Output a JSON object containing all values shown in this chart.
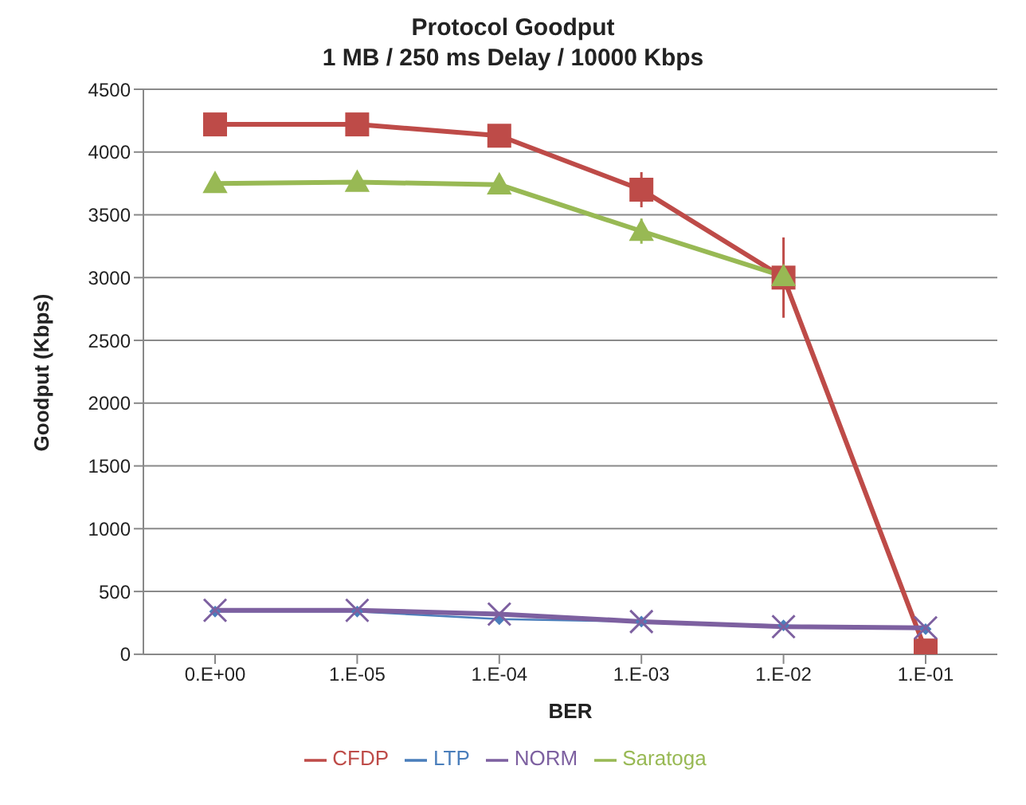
{
  "chart_data": {
    "type": "line",
    "title": "Protocol Goodput",
    "subtitle": "1 MB / 250 ms Delay / 10000 Kbps",
    "xlabel": "BER",
    "ylabel": "Goodput (Kbps)",
    "categories": [
      "0.E+00",
      "1.E-05",
      "1.E-04",
      "1.E-03",
      "1.E-02",
      "1.E-01"
    ],
    "ylim": [
      0,
      4500
    ],
    "yticks": [
      0,
      500,
      1000,
      1500,
      2000,
      2500,
      3000,
      3500,
      4000,
      4500
    ],
    "grid": "y",
    "legend": "bottom",
    "series": [
      {
        "name": "CFDP",
        "color": "#be4b48",
        "marker": "square",
        "values": [
          4220,
          4220,
          4130,
          3700,
          3000,
          30
        ],
        "errors": [
          null,
          null,
          null,
          140,
          320,
          null
        ]
      },
      {
        "name": "LTP",
        "color": "#4a7ebb",
        "marker": "diamond",
        "values": [
          340,
          340,
          280,
          260,
          230,
          200
        ]
      },
      {
        "name": "NORM",
        "color": "#7d60a0",
        "marker": "cross",
        "values": [
          350,
          350,
          320,
          260,
          220,
          210
        ]
      },
      {
        "name": "Saratoga",
        "color": "#98b954",
        "marker": "triangle",
        "values": [
          3750,
          3760,
          3740,
          3370,
          3010,
          null
        ],
        "errors": [
          null,
          null,
          null,
          100,
          null,
          null
        ]
      }
    ]
  }
}
